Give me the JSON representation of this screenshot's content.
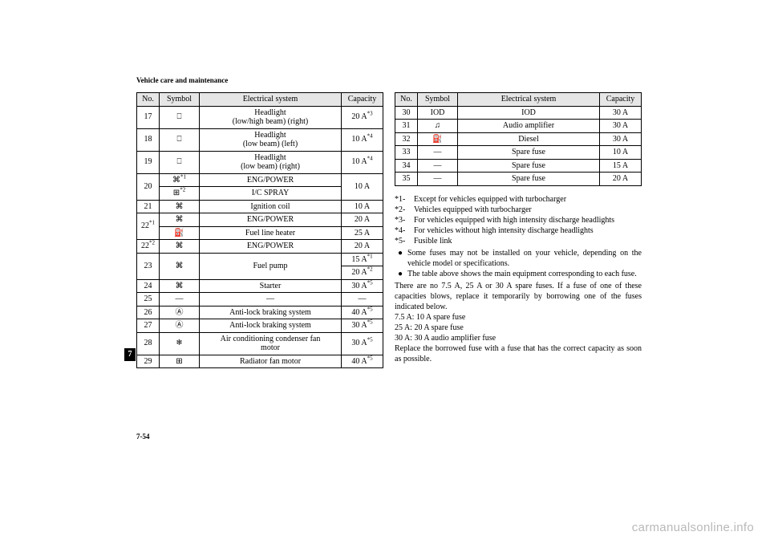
{
  "header": "Vehicle care and maintenance",
  "section_tab": "7",
  "page_number": "7-54",
  "watermark": "carmanualsonline.info",
  "table_headers": {
    "no": "No.",
    "symbol": "Symbol",
    "system": "Electrical system",
    "capacity": "Capacity"
  },
  "left_rows": [
    {
      "no": "17",
      "sym_glyph": "⎕",
      "systems": [
        "Headlight",
        "(low/high beam) (right)"
      ],
      "cap_val": "20 A",
      "cap_sup": "*3"
    },
    {
      "no": "18",
      "sym_glyph": "⎕",
      "systems": [
        "Headlight",
        "(low beam) (left)"
      ],
      "cap_val": "10 A",
      "cap_sup": "*4"
    },
    {
      "no": "19",
      "sym_glyph": "⎕",
      "systems": [
        "Headlight",
        "(low beam) (right)"
      ],
      "cap_val": "10 A",
      "cap_sup": "*4"
    },
    {
      "no": "20",
      "subrows": [
        {
          "sym_glyph": "⌘",
          "sym_sup": "*1",
          "system": "ENG/POWER"
        },
        {
          "sym_glyph": "⊞",
          "sym_sup": "*2",
          "system": "I/C SPRAY"
        }
      ],
      "cap_val": "10 A"
    },
    {
      "no": "21",
      "sym_glyph": "⌘",
      "system": "Ignition coil",
      "cap_val": "10 A"
    },
    {
      "no": "22",
      "no_sup": "*1",
      "subrows": [
        {
          "sym_glyph": "⌘",
          "system": "ENG/POWER",
          "cap_val": "20 A"
        },
        {
          "sym_glyph": "⛽",
          "system": "Fuel line heater",
          "cap_val": "25 A"
        }
      ]
    },
    {
      "no": "22",
      "no_sup": "*2",
      "sym_glyph": "⌘",
      "system": "ENG/POWER",
      "cap_val": "20 A"
    },
    {
      "no": "23",
      "sym_glyph": "⌘",
      "system": "Fuel pump",
      "caps": [
        {
          "val": "15 A",
          "sup": "*1"
        },
        {
          "val": "20 A",
          "sup": "*2"
        }
      ]
    },
    {
      "no": "24",
      "sym_glyph": "⌘",
      "system": "Starter",
      "cap_val": "30 A",
      "cap_sup": "*5"
    },
    {
      "no": "25",
      "sym_text": "—",
      "system": "—",
      "cap_val": "—"
    },
    {
      "no": "26",
      "sym_glyph": "Ⓐ",
      "system": "Anti-lock braking system",
      "cap_val": "40 A",
      "cap_sup": "*5"
    },
    {
      "no": "27",
      "sym_glyph": "Ⓐ",
      "system": "Anti-lock braking system",
      "cap_val": "30 A",
      "cap_sup": "*5"
    },
    {
      "no": "28",
      "sym_glyph": "❄",
      "systems": [
        "Air conditioning condenser fan",
        "motor"
      ],
      "cap_val": "30 A",
      "cap_sup": "*5"
    },
    {
      "no": "29",
      "sym_glyph": "⊞",
      "system": "Radiator fan motor",
      "cap_val": "40 A",
      "cap_sup": "*5"
    }
  ],
  "right_rows": [
    {
      "no": "30",
      "sym_text": "IOD",
      "system": "IOD",
      "cap_val": "30 A"
    },
    {
      "no": "31",
      "sym_glyph": "♫",
      "system": "Audio amplifier",
      "cap_val": "30 A"
    },
    {
      "no": "32",
      "sym_glyph": "⛽",
      "system": "Diesel",
      "cap_val": "30 A"
    },
    {
      "no": "33",
      "sym_text": "—",
      "system": "Spare fuse",
      "cap_val": "10 A"
    },
    {
      "no": "34",
      "sym_text": "—",
      "system": "Spare fuse",
      "cap_val": "15 A"
    },
    {
      "no": "35",
      "sym_text": "—",
      "system": "Spare fuse",
      "cap_val": "20 A"
    }
  ],
  "defs": [
    {
      "k": "*1-",
      "v": "Except for vehicles equipped with turbocharger"
    },
    {
      "k": "*2-",
      "v": "Vehicles equipped with turbocharger"
    },
    {
      "k": "*3-",
      "v": "For vehicles equipped with high intensity discharge head­lights"
    },
    {
      "k": "*4-",
      "v": "For vehicles without high intensity discharge headlights"
    },
    {
      "k": "*5-",
      "v": "Fusible link"
    }
  ],
  "bullets": [
    "Some fuses may not be installed on your vehicle, depend­ing on the vehicle model or specifications.",
    "The table above shows the main equipment corresponding to each fuse."
  ],
  "paras": [
    "There are no 7.5 A, 25 A or 30 A spare fuses. If a fuse of one of these capacities blows, replace it temporarily by borrowing one of the fuses indicated below.",
    "7.5 A: 10 A spare fuse",
    "25 A: 20 A spare fuse",
    "30 A: 30 A audio amplifier fuse",
    "Replace the borrowed fuse with a fuse that has the correct capacity as soon as possible."
  ],
  "bullet_mark": "●"
}
